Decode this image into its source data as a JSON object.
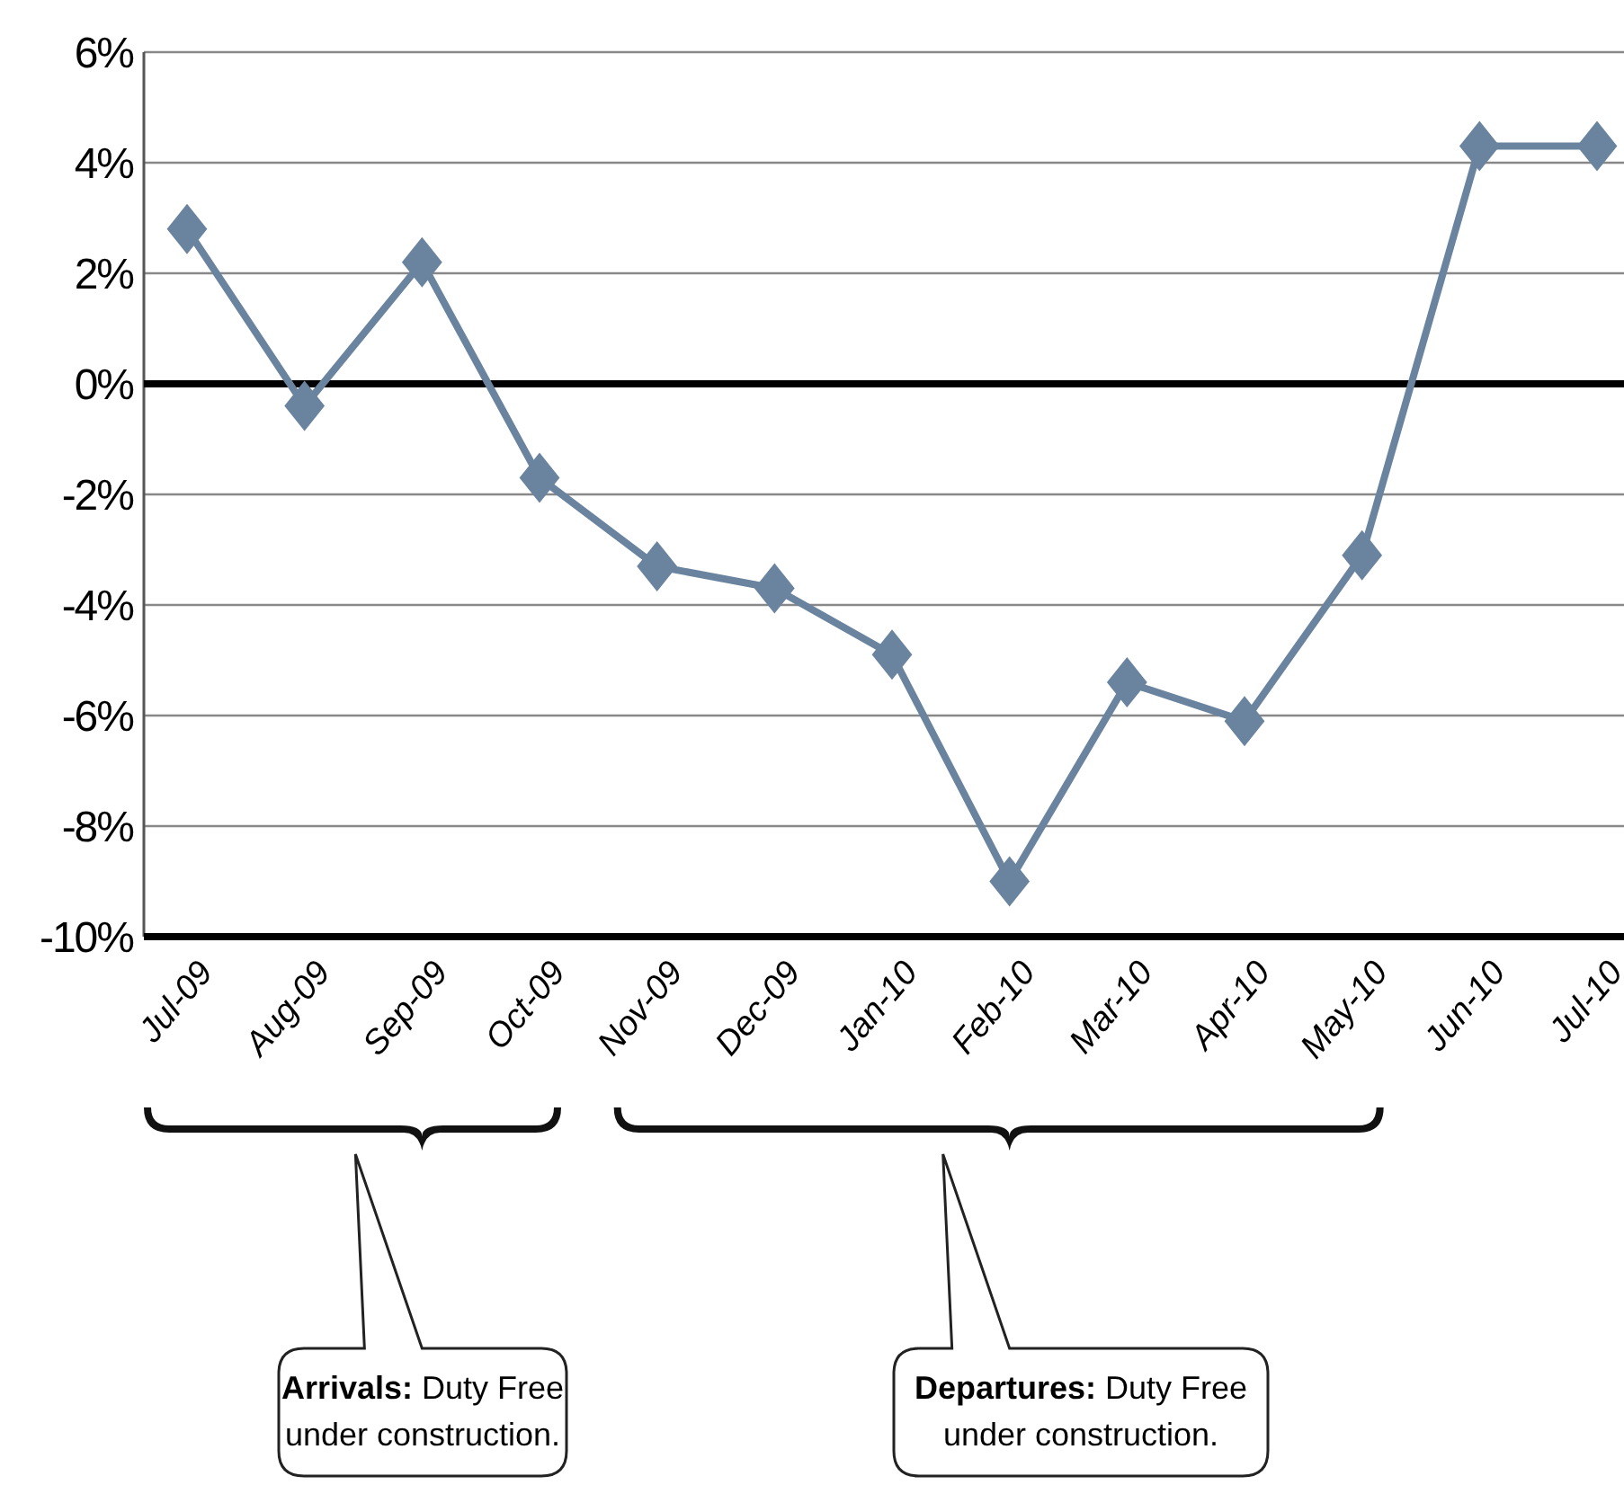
{
  "chart_data": {
    "type": "line",
    "categories": [
      "Jul-09",
      "Aug-09",
      "Sep-09",
      "Oct-09",
      "Nov-09",
      "Dec-09",
      "Jan-10",
      "Feb-10",
      "Mar-10",
      "Apr-10",
      "May-10",
      "Jun-10",
      "Jul-10"
    ],
    "series": [
      {
        "color": "#6a84a0",
        "values": [
          2.8,
          -0.4,
          2.2,
          -1.7,
          -3.3,
          -3.7,
          -4.9,
          -9.0,
          -5.4,
          -6.1,
          -3.1,
          4.3,
          4.3
        ]
      }
    ],
    "ylim": [
      -10,
      6
    ],
    "yticks": [
      {
        "value": -10,
        "label": "-10%"
      },
      {
        "value": -8,
        "label": "-8%"
      },
      {
        "value": -6,
        "label": "-6%"
      },
      {
        "value": -4,
        "label": "-4%"
      },
      {
        "value": -2,
        "label": "-2%"
      },
      {
        "value": 0,
        "label": "0%"
      },
      {
        "value": 2,
        "label": "2%"
      },
      {
        "value": 4,
        "label": "4%"
      },
      {
        "value": 6,
        "label": "6%"
      }
    ],
    "grid": "y",
    "marker": "diamond",
    "line_style": "solid",
    "ref_lines": [
      {
        "axis": "y",
        "value": 0,
        "color": "#000000"
      }
    ],
    "annotations": [
      "Arrivals: Duty Free under construction.",
      "Departures: Duty Free under construction."
    ]
  }
}
